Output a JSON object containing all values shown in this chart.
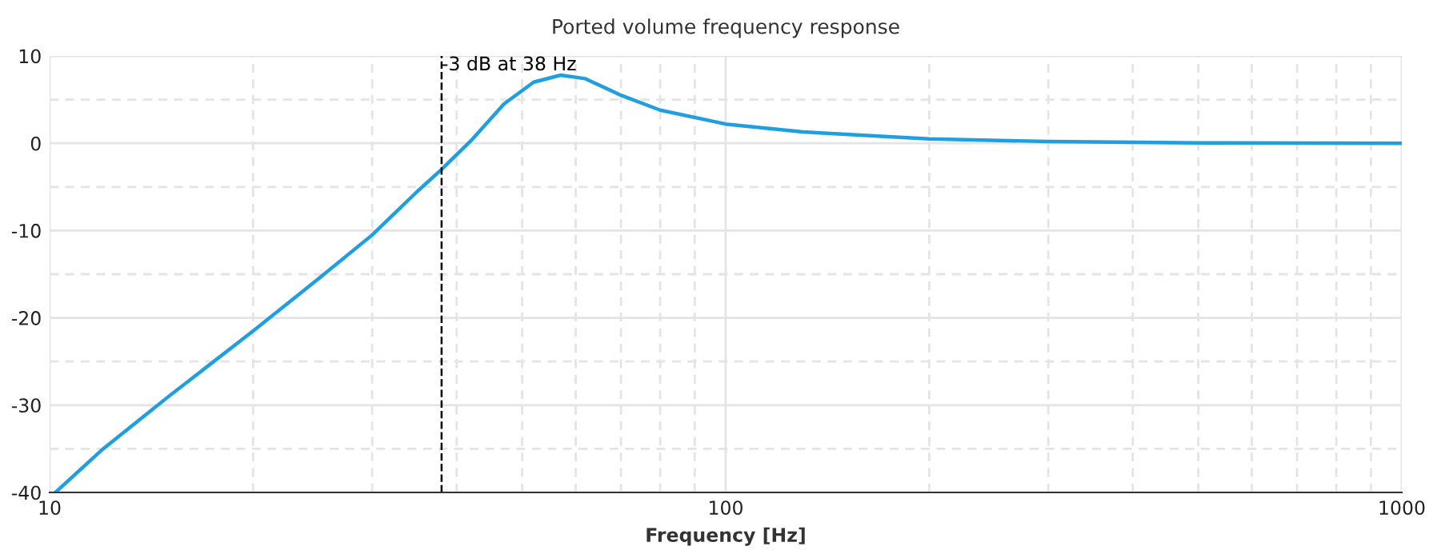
{
  "chart_data": {
    "type": "line",
    "title": "Ported volume frequency response",
    "xlabel": "Frequency [Hz]",
    "x": [
      10.2,
      12,
      15,
      20,
      25,
      30,
      35,
      38,
      42,
      47,
      52,
      57,
      62,
      70,
      80,
      100,
      130,
      200,
      300,
      500,
      1000
    ],
    "series": [
      {
        "color": "#1f9fe0",
        "values": [
          -40,
          -35,
          -29,
          -21.5,
          -15.5,
          -10.5,
          -5.5,
          -3,
          0.3,
          4.5,
          7,
          7.8,
          7.4,
          5.5,
          3.8,
          2.2,
          1.3,
          0.5,
          0.2,
          0.05,
          0
        ]
      }
    ],
    "log": "x",
    "xlim": [
      10,
      1000
    ],
    "xticks": [
      10,
      100,
      1000
    ],
    "ylim": [
      -40,
      10
    ],
    "yticks": [
      -40,
      -30,
      -20,
      -10,
      0,
      10
    ],
    "ref_lines": [
      {
        "axis": "x",
        "value": 38,
        "label": "-3 dB at 38 Hz",
        "color": "#000000",
        "line_style": "dashed"
      }
    ],
    "grid": true,
    "marker": "none",
    "line_style": "solid"
  }
}
